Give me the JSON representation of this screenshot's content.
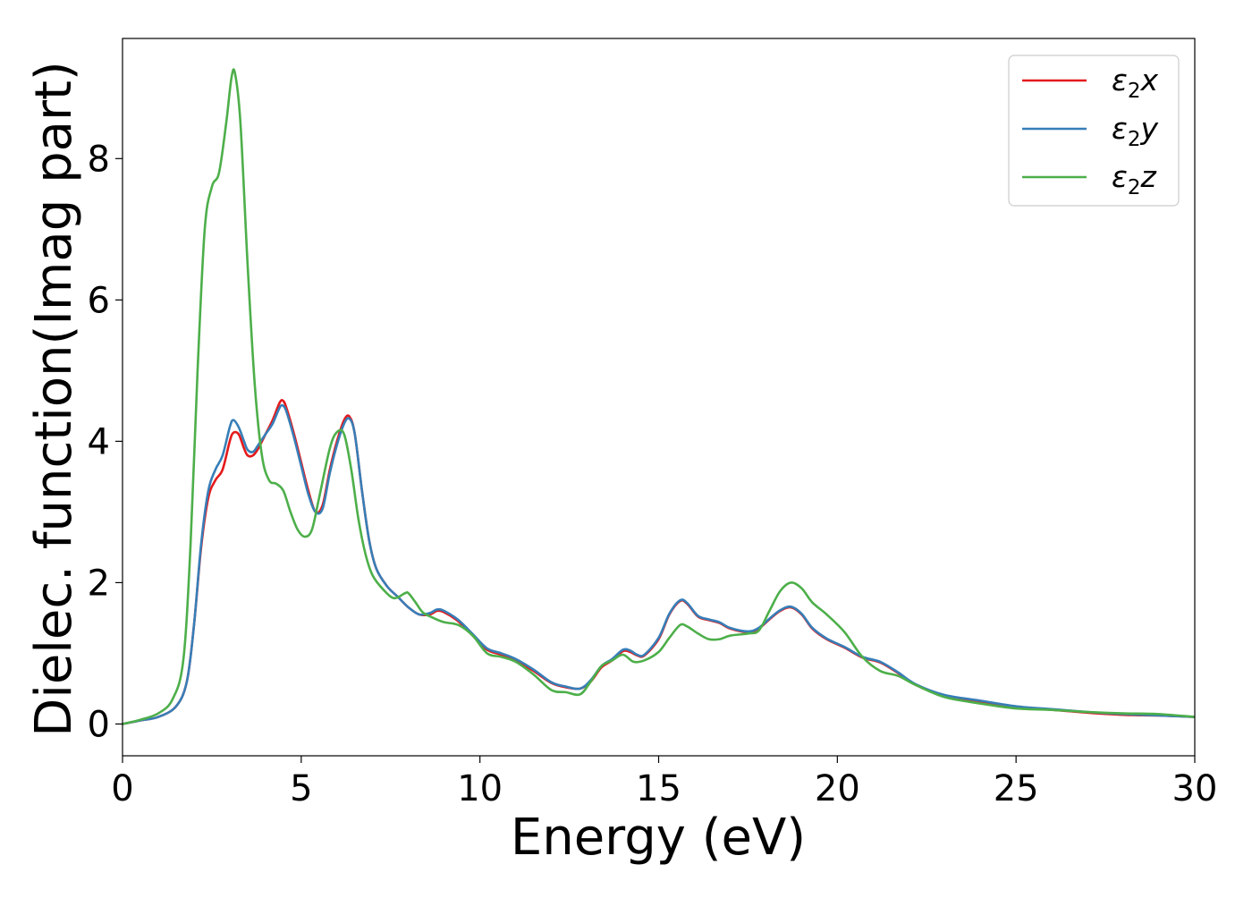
{
  "chart_data": {
    "type": "line",
    "title": "",
    "xlabel": "Energy (eV)",
    "ylabel": "Dielec. function(Imag part)",
    "xlim": [
      0,
      30
    ],
    "ylim": [
      -0.45,
      9.7
    ],
    "xticks": [
      0,
      5,
      10,
      15,
      20,
      25,
      30
    ],
    "yticks": [
      0,
      2,
      4,
      6,
      8
    ],
    "grid": false,
    "legend_position": "top-right",
    "colors": {
      "x": "#e41a1c",
      "y": "#377eb8",
      "z": "#4daf4a"
    },
    "series": [
      {
        "key": "x",
        "legend_base": "ε",
        "legend_sub": "2",
        "legend_suffix": "x",
        "color": "#e41a1c",
        "points": [
          [
            0,
            0
          ],
          [
            0.5,
            0.05
          ],
          [
            1.0,
            0.1
          ],
          [
            1.5,
            0.25
          ],
          [
            1.8,
            0.6
          ],
          [
            2.0,
            1.4
          ],
          [
            2.2,
            2.5
          ],
          [
            2.4,
            3.2
          ],
          [
            2.6,
            3.45
          ],
          [
            2.8,
            3.6
          ],
          [
            3.0,
            4.0
          ],
          [
            3.1,
            4.12
          ],
          [
            3.25,
            4.1
          ],
          [
            3.4,
            3.9
          ],
          [
            3.5,
            3.8
          ],
          [
            3.65,
            3.8
          ],
          [
            3.8,
            3.9
          ],
          [
            4.0,
            4.1
          ],
          [
            4.2,
            4.3
          ],
          [
            4.4,
            4.55
          ],
          [
            4.5,
            4.57
          ],
          [
            4.6,
            4.45
          ],
          [
            4.8,
            4.1
          ],
          [
            5.0,
            3.7
          ],
          [
            5.2,
            3.3
          ],
          [
            5.4,
            3.0
          ],
          [
            5.6,
            3.1
          ],
          [
            5.8,
            3.6
          ],
          [
            6.0,
            4.0
          ],
          [
            6.2,
            4.3
          ],
          [
            6.35,
            4.35
          ],
          [
            6.5,
            4.1
          ],
          [
            6.7,
            3.3
          ],
          [
            6.9,
            2.6
          ],
          [
            7.1,
            2.2
          ],
          [
            7.4,
            1.95
          ],
          [
            7.7,
            1.8
          ],
          [
            8.0,
            1.65
          ],
          [
            8.3,
            1.55
          ],
          [
            8.6,
            1.55
          ],
          [
            8.8,
            1.6
          ],
          [
            9.0,
            1.58
          ],
          [
            9.4,
            1.45
          ],
          [
            9.8,
            1.25
          ],
          [
            10.2,
            1.05
          ],
          [
            10.6,
            0.98
          ],
          [
            11.0,
            0.9
          ],
          [
            11.5,
            0.75
          ],
          [
            12.0,
            0.58
          ],
          [
            12.4,
            0.52
          ],
          [
            12.8,
            0.5
          ],
          [
            13.1,
            0.6
          ],
          [
            13.4,
            0.8
          ],
          [
            13.7,
            0.9
          ],
          [
            14.0,
            1.03
          ],
          [
            14.2,
            1.02
          ],
          [
            14.4,
            0.97
          ],
          [
            14.6,
            0.97
          ],
          [
            15.0,
            1.2
          ],
          [
            15.3,
            1.55
          ],
          [
            15.6,
            1.74
          ],
          [
            15.8,
            1.7
          ],
          [
            16.1,
            1.52
          ],
          [
            16.4,
            1.47
          ],
          [
            16.7,
            1.43
          ],
          [
            17.0,
            1.35
          ],
          [
            17.5,
            1.3
          ],
          [
            17.8,
            1.35
          ],
          [
            18.1,
            1.48
          ],
          [
            18.4,
            1.6
          ],
          [
            18.7,
            1.65
          ],
          [
            19.0,
            1.55
          ],
          [
            19.3,
            1.35
          ],
          [
            19.7,
            1.2
          ],
          [
            20.2,
            1.08
          ],
          [
            20.7,
            0.94
          ],
          [
            21.2,
            0.87
          ],
          [
            21.7,
            0.72
          ],
          [
            22.2,
            0.55
          ],
          [
            23.0,
            0.4
          ],
          [
            24.0,
            0.32
          ],
          [
            25.0,
            0.24
          ],
          [
            26.0,
            0.2
          ],
          [
            27.0,
            0.16
          ],
          [
            28.0,
            0.13
          ],
          [
            29.0,
            0.12
          ],
          [
            30.0,
            0.1
          ]
        ]
      },
      {
        "key": "y",
        "legend_base": "ε",
        "legend_sub": "2",
        "legend_suffix": "y",
        "color": "#377eb8",
        "points": [
          [
            0,
            0
          ],
          [
            0.5,
            0.05
          ],
          [
            1.0,
            0.1
          ],
          [
            1.5,
            0.25
          ],
          [
            1.8,
            0.6
          ],
          [
            2.0,
            1.4
          ],
          [
            2.2,
            2.55
          ],
          [
            2.4,
            3.3
          ],
          [
            2.6,
            3.6
          ],
          [
            2.8,
            3.8
          ],
          [
            3.0,
            4.2
          ],
          [
            3.1,
            4.3
          ],
          [
            3.25,
            4.2
          ],
          [
            3.4,
            4.0
          ],
          [
            3.5,
            3.88
          ],
          [
            3.65,
            3.85
          ],
          [
            3.8,
            3.95
          ],
          [
            4.0,
            4.1
          ],
          [
            4.2,
            4.25
          ],
          [
            4.4,
            4.48
          ],
          [
            4.5,
            4.5
          ],
          [
            4.6,
            4.4
          ],
          [
            4.8,
            4.05
          ],
          [
            5.0,
            3.65
          ],
          [
            5.2,
            3.25
          ],
          [
            5.4,
            3.0
          ],
          [
            5.6,
            3.05
          ],
          [
            5.8,
            3.55
          ],
          [
            6.0,
            3.95
          ],
          [
            6.2,
            4.25
          ],
          [
            6.35,
            4.32
          ],
          [
            6.5,
            4.1
          ],
          [
            6.7,
            3.3
          ],
          [
            6.9,
            2.6
          ],
          [
            7.1,
            2.2
          ],
          [
            7.4,
            1.95
          ],
          [
            7.7,
            1.8
          ],
          [
            8.0,
            1.65
          ],
          [
            8.3,
            1.55
          ],
          [
            8.6,
            1.57
          ],
          [
            8.8,
            1.62
          ],
          [
            9.0,
            1.6
          ],
          [
            9.4,
            1.47
          ],
          [
            9.8,
            1.27
          ],
          [
            10.2,
            1.07
          ],
          [
            10.6,
            1.0
          ],
          [
            11.0,
            0.92
          ],
          [
            11.5,
            0.77
          ],
          [
            12.0,
            0.59
          ],
          [
            12.4,
            0.53
          ],
          [
            12.8,
            0.5
          ],
          [
            13.1,
            0.62
          ],
          [
            13.4,
            0.82
          ],
          [
            13.7,
            0.92
          ],
          [
            14.0,
            1.05
          ],
          [
            14.2,
            1.04
          ],
          [
            14.4,
            0.98
          ],
          [
            14.6,
            0.98
          ],
          [
            15.0,
            1.22
          ],
          [
            15.3,
            1.56
          ],
          [
            15.6,
            1.75
          ],
          [
            15.8,
            1.71
          ],
          [
            16.1,
            1.53
          ],
          [
            16.4,
            1.48
          ],
          [
            16.7,
            1.44
          ],
          [
            17.0,
            1.36
          ],
          [
            17.5,
            1.31
          ],
          [
            17.8,
            1.36
          ],
          [
            18.1,
            1.49
          ],
          [
            18.4,
            1.61
          ],
          [
            18.7,
            1.66
          ],
          [
            19.0,
            1.56
          ],
          [
            19.3,
            1.36
          ],
          [
            19.7,
            1.21
          ],
          [
            20.2,
            1.09
          ],
          [
            20.7,
            0.95
          ],
          [
            21.2,
            0.88
          ],
          [
            21.7,
            0.73
          ],
          [
            22.2,
            0.56
          ],
          [
            23.0,
            0.41
          ],
          [
            24.0,
            0.33
          ],
          [
            25.0,
            0.25
          ],
          [
            26.0,
            0.21
          ],
          [
            27.0,
            0.17
          ],
          [
            28.0,
            0.14
          ],
          [
            29.0,
            0.12
          ],
          [
            30.0,
            0.1
          ]
        ]
      },
      {
        "key": "z",
        "legend_base": "ε",
        "legend_sub": "2",
        "legend_suffix": "z",
        "color": "#4daf4a",
        "points": [
          [
            0,
            0
          ],
          [
            0.5,
            0.06
          ],
          [
            1.0,
            0.15
          ],
          [
            1.4,
            0.35
          ],
          [
            1.7,
            0.9
          ],
          [
            1.9,
            2.5
          ],
          [
            2.1,
            5.0
          ],
          [
            2.3,
            7.0
          ],
          [
            2.5,
            7.6
          ],
          [
            2.7,
            7.8
          ],
          [
            2.9,
            8.5
          ],
          [
            3.05,
            9.15
          ],
          [
            3.15,
            9.2
          ],
          [
            3.3,
            8.5
          ],
          [
            3.5,
            6.5
          ],
          [
            3.7,
            4.8
          ],
          [
            3.9,
            3.8
          ],
          [
            4.1,
            3.45
          ],
          [
            4.3,
            3.4
          ],
          [
            4.5,
            3.3
          ],
          [
            4.7,
            3.0
          ],
          [
            4.9,
            2.75
          ],
          [
            5.1,
            2.65
          ],
          [
            5.3,
            2.75
          ],
          [
            5.5,
            3.2
          ],
          [
            5.8,
            3.9
          ],
          [
            6.0,
            4.13
          ],
          [
            6.2,
            4.1
          ],
          [
            6.4,
            3.6
          ],
          [
            6.6,
            2.9
          ],
          [
            6.8,
            2.4
          ],
          [
            7.0,
            2.1
          ],
          [
            7.3,
            1.9
          ],
          [
            7.6,
            1.78
          ],
          [
            7.9,
            1.85
          ],
          [
            8.0,
            1.85
          ],
          [
            8.2,
            1.72
          ],
          [
            8.4,
            1.58
          ],
          [
            8.7,
            1.5
          ],
          [
            9.0,
            1.44
          ],
          [
            9.4,
            1.4
          ],
          [
            9.8,
            1.25
          ],
          [
            10.2,
            1.0
          ],
          [
            10.6,
            0.95
          ],
          [
            11.0,
            0.88
          ],
          [
            11.5,
            0.7
          ],
          [
            12.0,
            0.48
          ],
          [
            12.4,
            0.45
          ],
          [
            12.8,
            0.42
          ],
          [
            13.1,
            0.6
          ],
          [
            13.4,
            0.82
          ],
          [
            13.7,
            0.9
          ],
          [
            14.0,
            0.98
          ],
          [
            14.3,
            0.88
          ],
          [
            14.6,
            0.9
          ],
          [
            15.0,
            1.02
          ],
          [
            15.3,
            1.22
          ],
          [
            15.6,
            1.4
          ],
          [
            15.8,
            1.38
          ],
          [
            16.1,
            1.28
          ],
          [
            16.4,
            1.2
          ],
          [
            16.7,
            1.2
          ],
          [
            17.0,
            1.25
          ],
          [
            17.5,
            1.28
          ],
          [
            17.8,
            1.32
          ],
          [
            18.1,
            1.6
          ],
          [
            18.4,
            1.88
          ],
          [
            18.7,
            2.0
          ],
          [
            19.0,
            1.92
          ],
          [
            19.3,
            1.72
          ],
          [
            19.7,
            1.55
          ],
          [
            20.2,
            1.3
          ],
          [
            20.7,
            0.95
          ],
          [
            21.2,
            0.75
          ],
          [
            21.7,
            0.68
          ],
          [
            22.2,
            0.55
          ],
          [
            23.0,
            0.38
          ],
          [
            24.0,
            0.29
          ],
          [
            25.0,
            0.22
          ],
          [
            26.0,
            0.2
          ],
          [
            27.0,
            0.17
          ],
          [
            28.0,
            0.15
          ],
          [
            29.0,
            0.14
          ],
          [
            30.0,
            0.1
          ]
        ]
      }
    ]
  }
}
